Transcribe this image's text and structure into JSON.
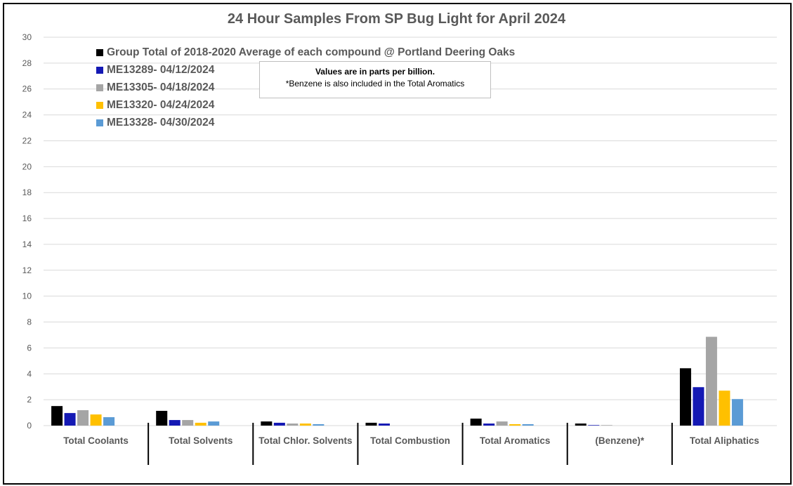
{
  "chart_data": {
    "type": "bar",
    "title": "24 Hour Samples From SP Bug Light for April 2024",
    "annotation": [
      "Values are in parts per billion.",
      "*Benzene is also included in the Total Aromatics"
    ],
    "categories": [
      "Total Coolants",
      "Total Solvents",
      "Total Chlor. Solvents",
      "Total Combustion",
      "Total Aromatics",
      "(Benzene)*",
      "Total Aliphatics"
    ],
    "ylim": [
      0,
      30
    ],
    "yticks": [
      0,
      2,
      4,
      6,
      8,
      10,
      12,
      14,
      16,
      18,
      20,
      22,
      24,
      26,
      28,
      30
    ],
    "grid": true,
    "legend_position": "top-left",
    "series": [
      {
        "name": "Group Total of 2018-2020 Average of each compound @ Portland Deering Oaks",
        "color": "#000000",
        "values": [
          1.51,
          1.14,
          0.32,
          0.22,
          0.54,
          0.16,
          4.43
        ]
      },
      {
        "name": "ME13289- 04/12/2024",
        "color": "#1419b4",
        "values": [
          0.97,
          0.43,
          0.22,
          0.16,
          0.16,
          0.04,
          2.97
        ]
      },
      {
        "name": "ME13305- 04/18/2024",
        "color": "#a5a5a5",
        "values": [
          1.19,
          0.43,
          0.16,
          0,
          0.32,
          0.04,
          6.86
        ]
      },
      {
        "name": "ME13320- 04/24/2024",
        "color": "#ffc000",
        "values": [
          0.86,
          0.22,
          0.16,
          0,
          0.11,
          0,
          2.7
        ]
      },
      {
        "name": "ME13328- 04/30/2024",
        "color": "#5b9bd5",
        "values": [
          0.65,
          0.32,
          0.11,
          0,
          0.11,
          0,
          2.05
        ]
      }
    ]
  }
}
